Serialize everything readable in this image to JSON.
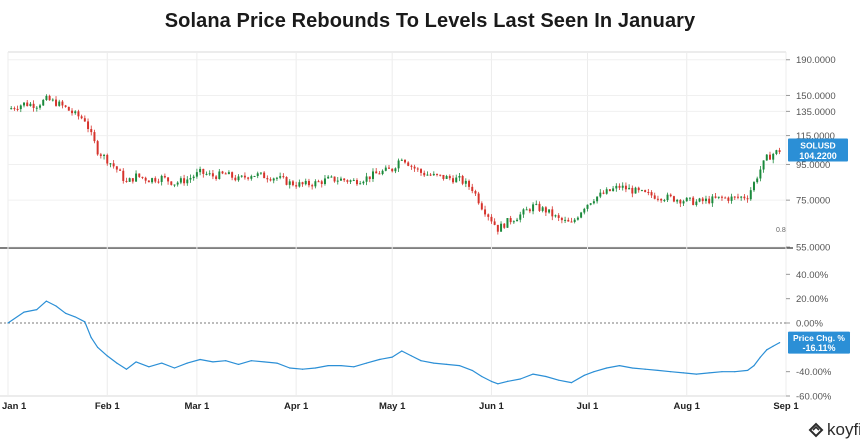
{
  "title": "Solana Price Rebounds To Levels Last Seen In January",
  "brand": {
    "name": "koyfin",
    "icon": "koyfin-logo-icon"
  },
  "colors": {
    "up": "#1b8a3c",
    "down": "#d6332c",
    "line": "#2b8fd6",
    "badge": "#2b8fd6",
    "grid": "#d9d9d9",
    "zero": "#7a7a7a",
    "axis_text": "#555555"
  },
  "chart_data": [
    {
      "type": "candlestick",
      "name": "price_panel",
      "y_scale": "log",
      "ylim": [
        55,
        200
      ],
      "y_ticks": [
        "190.0000",
        "150.0000",
        "135.0000",
        "115.0000",
        "95.0000",
        "75.0000",
        "55.0000"
      ],
      "x_ticks": [
        "Jan 1",
        "Feb 1",
        "Mar 1",
        "Apr 1",
        "May 1",
        "Jun 1",
        "Jul 1",
        "Aug 1",
        "Sep 1"
      ],
      "last_label": "SOLUSD",
      "last_value": "104.2200",
      "annotation": "0.8",
      "close_series": [
        [
          "2022-01-01",
          137
        ],
        [
          "2022-01-06",
          142
        ],
        [
          "2022-01-10",
          141
        ],
        [
          "2022-01-13",
          146
        ],
        [
          "2022-01-16",
          143
        ],
        [
          "2022-01-19",
          138
        ],
        [
          "2022-01-22",
          132
        ],
        [
          "2022-01-25",
          128
        ],
        [
          "2022-01-27",
          115
        ],
        [
          "2022-01-29",
          104
        ],
        [
          "2022-02-01",
          98
        ],
        [
          "2022-02-04",
          92
        ],
        [
          "2022-02-07",
          84
        ],
        [
          "2022-02-10",
          88
        ],
        [
          "2022-02-14",
          86
        ],
        [
          "2022-02-18",
          87
        ],
        [
          "2022-02-22",
          84
        ],
        [
          "2022-02-26",
          86
        ],
        [
          "2022-03-02",
          90
        ],
        [
          "2022-03-06",
          88
        ],
        [
          "2022-03-10",
          89
        ],
        [
          "2022-03-14",
          86
        ],
        [
          "2022-03-18",
          89
        ],
        [
          "2022-03-22",
          88
        ],
        [
          "2022-03-26",
          87
        ],
        [
          "2022-03-30",
          84
        ],
        [
          "2022-04-03",
          83
        ],
        [
          "2022-04-07",
          84
        ],
        [
          "2022-04-11",
          86
        ],
        [
          "2022-04-15",
          86
        ],
        [
          "2022-04-19",
          85
        ],
        [
          "2022-04-23",
          87
        ],
        [
          "2022-04-27",
          90
        ],
        [
          "2022-05-01",
          92
        ],
        [
          "2022-05-04",
          100
        ],
        [
          "2022-05-07",
          94
        ],
        [
          "2022-05-10",
          90
        ],
        [
          "2022-05-14",
          88
        ],
        [
          "2022-05-18",
          87
        ],
        [
          "2022-05-22",
          86
        ],
        [
          "2022-05-26",
          81
        ],
        [
          "2022-05-29",
          72
        ],
        [
          "2022-06-01",
          66
        ],
        [
          "2022-06-03",
          62
        ],
        [
          "2022-06-06",
          65
        ],
        [
          "2022-06-10",
          68
        ],
        [
          "2022-06-14",
          72
        ],
        [
          "2022-06-18",
          70
        ],
        [
          "2022-06-22",
          66
        ],
        [
          "2022-06-26",
          64
        ],
        [
          "2022-06-30",
          72
        ],
        [
          "2022-07-03",
          76
        ],
        [
          "2022-07-07",
          79
        ],
        [
          "2022-07-11",
          82
        ],
        [
          "2022-07-15",
          80
        ],
        [
          "2022-07-19",
          78
        ],
        [
          "2022-07-23",
          77
        ],
        [
          "2022-07-27",
          76
        ],
        [
          "2022-07-31",
          75
        ],
        [
          "2022-08-04",
          74
        ],
        [
          "2022-08-08",
          75
        ],
        [
          "2022-08-12",
          76
        ],
        [
          "2022-08-16",
          76
        ],
        [
          "2022-08-20",
          77
        ],
        [
          "2022-08-22",
          84
        ],
        [
          "2022-08-24",
          92
        ],
        [
          "2022-08-26",
          99
        ],
        [
          "2022-08-28",
          102
        ],
        [
          "2022-08-30",
          104.22
        ]
      ]
    },
    {
      "type": "line",
      "name": "pct_change_panel",
      "ylim": [
        -60,
        60
      ],
      "y_ticks": [
        "40.00%",
        "20.00%",
        "0.00%",
        "-40.00%",
        "-60.00%"
      ],
      "zero_line": true,
      "last_label": "Price Chg. %",
      "last_value": "-16.11%",
      "series": [
        [
          "2022-01-01",
          0
        ],
        [
          "2022-01-06",
          9
        ],
        [
          "2022-01-10",
          11
        ],
        [
          "2022-01-13",
          18
        ],
        [
          "2022-01-16",
          14
        ],
        [
          "2022-01-19",
          8
        ],
        [
          "2022-01-22",
          5
        ],
        [
          "2022-01-25",
          1
        ],
        [
          "2022-01-27",
          -12
        ],
        [
          "2022-01-29",
          -20
        ],
        [
          "2022-02-01",
          -27
        ],
        [
          "2022-02-04",
          -33
        ],
        [
          "2022-02-07",
          -38
        ],
        [
          "2022-02-10",
          -32
        ],
        [
          "2022-02-14",
          -36
        ],
        [
          "2022-02-18",
          -33
        ],
        [
          "2022-02-22",
          -37
        ],
        [
          "2022-02-26",
          -33
        ],
        [
          "2022-03-02",
          -30
        ],
        [
          "2022-03-06",
          -32
        ],
        [
          "2022-03-10",
          -31
        ],
        [
          "2022-03-14",
          -34
        ],
        [
          "2022-03-18",
          -31
        ],
        [
          "2022-03-22",
          -32
        ],
        [
          "2022-03-26",
          -33
        ],
        [
          "2022-03-30",
          -37
        ],
        [
          "2022-04-03",
          -38
        ],
        [
          "2022-04-07",
          -37
        ],
        [
          "2022-04-11",
          -35
        ],
        [
          "2022-04-15",
          -35
        ],
        [
          "2022-04-19",
          -36
        ],
        [
          "2022-04-23",
          -33
        ],
        [
          "2022-04-27",
          -30
        ],
        [
          "2022-05-01",
          -28
        ],
        [
          "2022-05-04",
          -23
        ],
        [
          "2022-05-07",
          -27
        ],
        [
          "2022-05-10",
          -31
        ],
        [
          "2022-05-14",
          -33
        ],
        [
          "2022-05-18",
          -34
        ],
        [
          "2022-05-22",
          -35
        ],
        [
          "2022-05-26",
          -39
        ],
        [
          "2022-05-29",
          -44
        ],
        [
          "2022-06-01",
          -48
        ],
        [
          "2022-06-03",
          -50
        ],
        [
          "2022-06-06",
          -48
        ],
        [
          "2022-06-10",
          -46
        ],
        [
          "2022-06-14",
          -42
        ],
        [
          "2022-06-18",
          -44
        ],
        [
          "2022-06-22",
          -47
        ],
        [
          "2022-06-26",
          -49
        ],
        [
          "2022-06-30",
          -43
        ],
        [
          "2022-07-03",
          -40
        ],
        [
          "2022-07-07",
          -37
        ],
        [
          "2022-07-11",
          -35
        ],
        [
          "2022-07-15",
          -37
        ],
        [
          "2022-07-19",
          -38
        ],
        [
          "2022-07-23",
          -39
        ],
        [
          "2022-07-27",
          -40
        ],
        [
          "2022-07-31",
          -41
        ],
        [
          "2022-08-04",
          -42
        ],
        [
          "2022-08-08",
          -41
        ],
        [
          "2022-08-12",
          -40
        ],
        [
          "2022-08-16",
          -40
        ],
        [
          "2022-08-20",
          -39
        ],
        [
          "2022-08-22",
          -35
        ],
        [
          "2022-08-24",
          -28
        ],
        [
          "2022-08-26",
          -22
        ],
        [
          "2022-08-28",
          -19
        ],
        [
          "2022-08-30",
          -16.11
        ]
      ]
    }
  ]
}
